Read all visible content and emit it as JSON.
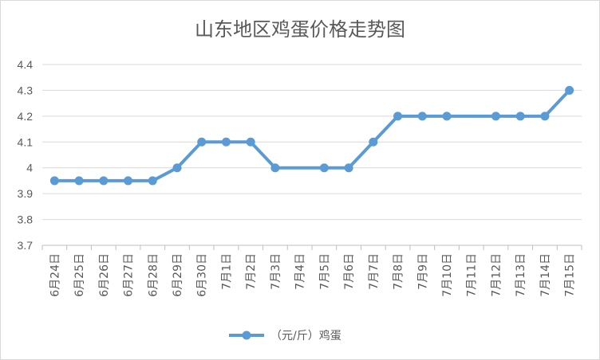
{
  "chart_data": {
    "type": "line",
    "title": "山东地区鸡蛋价格走势图",
    "xlabel": "",
    "ylabel": "",
    "ylim": [
      3.7,
      4.4
    ],
    "yticks": [
      "3.7",
      "3.8",
      "3.9",
      "4",
      "4.1",
      "4.2",
      "4.3",
      "4.4"
    ],
    "grid": true,
    "legend_position": "bottom",
    "categories": [
      "6月24日",
      "6月25日",
      "6月26日",
      "6月27日",
      "6月28日",
      "6月29日",
      "6月30日",
      "7月1日",
      "7月2日",
      "7月3日",
      "7月4日",
      "7月5日",
      "7月6日",
      "7月7日",
      "7月8日",
      "7月9日",
      "7月10日",
      "7月11日",
      "7月12日",
      "7月13日",
      "7月14日",
      "7月15日"
    ],
    "series": [
      {
        "name": "（元/斤）鸡蛋",
        "color": "#5b9bd5",
        "values": [
          3.95,
          3.95,
          3.95,
          3.95,
          3.95,
          4.0,
          4.1,
          4.1,
          4.1,
          4.0,
          4.0,
          4.0,
          4.0,
          4.1,
          4.2,
          4.2,
          4.2,
          4.2,
          4.2,
          4.2,
          4.2,
          4.3
        ],
        "markers": [
          true,
          true,
          true,
          true,
          true,
          true,
          true,
          true,
          true,
          true,
          false,
          true,
          true,
          true,
          true,
          true,
          true,
          false,
          true,
          true,
          true,
          true
        ]
      }
    ]
  }
}
